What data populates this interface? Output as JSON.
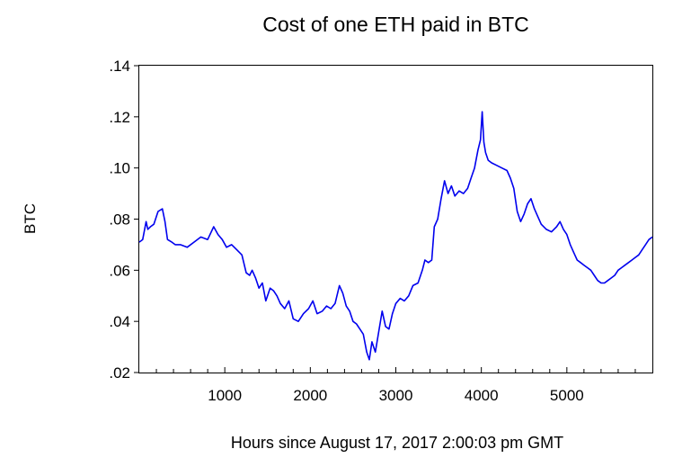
{
  "chart_data": {
    "type": "line",
    "title": "Cost of one ETH paid in BTC",
    "xlabel": "Hours since August 17, 2017 2:00:03 pm GMT",
    "ylabel": "BTC",
    "xlim": [
      0,
      6000
    ],
    "ylim": [
      0.02,
      0.14
    ],
    "x_ticks": [
      1000,
      2000,
      3000,
      4000,
      5000
    ],
    "x_tick_labels": [
      "1000",
      "2000",
      "3000",
      "4000",
      "5000"
    ],
    "y_ticks": [
      0.02,
      0.04,
      0.06,
      0.08,
      0.1,
      0.12,
      0.14
    ],
    "y_tick_labels": [
      ".02",
      ".04",
      ".06",
      ".08",
      ".10",
      ".12",
      ".14"
    ],
    "grid": false,
    "legend": "none",
    "series": [
      {
        "color": "#0000ee",
        "x": [
          0,
          40,
          80,
          100,
          130,
          170,
          220,
          270,
          300,
          330,
          380,
          420,
          480,
          560,
          640,
          720,
          800,
          870,
          920,
          970,
          1020,
          1080,
          1140,
          1200,
          1250,
          1290,
          1320,
          1360,
          1400,
          1440,
          1480,
          1530,
          1570,
          1610,
          1650,
          1700,
          1750,
          1800,
          1860,
          1920,
          1980,
          2030,
          2080,
          2140,
          2190,
          2240,
          2290,
          2340,
          2380,
          2420,
          2460,
          2500,
          2540,
          2580,
          2620,
          2660,
          2690,
          2720,
          2760,
          2800,
          2840,
          2880,
          2920,
          2960,
          3000,
          3050,
          3100,
          3150,
          3200,
          3260,
          3310,
          3340,
          3380,
          3420,
          3450,
          3490,
          3530,
          3570,
          3610,
          3650,
          3690,
          3740,
          3790,
          3840,
          3880,
          3920,
          3960,
          3990,
          4010,
          4030,
          4050,
          4080,
          4120,
          4180,
          4240,
          4300,
          4340,
          4380,
          4420,
          4460,
          4500,
          4540,
          4580,
          4620,
          4660,
          4700,
          4760,
          4820,
          4880,
          4920,
          4960,
          5000,
          5040,
          5080,
          5120,
          5160,
          5200,
          5240,
          5280,
          5320,
          5360,
          5400,
          5440,
          5480,
          5520,
          5560,
          5600,
          5640,
          5680,
          5720,
          5760,
          5800,
          5840,
          5880,
          5920,
          5960,
          6000
        ],
        "values": [
          0.071,
          0.072,
          0.079,
          0.076,
          0.077,
          0.078,
          0.083,
          0.084,
          0.079,
          0.072,
          0.071,
          0.07,
          0.07,
          0.069,
          0.071,
          0.073,
          0.072,
          0.077,
          0.074,
          0.072,
          0.069,
          0.07,
          0.068,
          0.066,
          0.059,
          0.058,
          0.06,
          0.057,
          0.053,
          0.055,
          0.048,
          0.053,
          0.052,
          0.05,
          0.047,
          0.045,
          0.048,
          0.041,
          0.04,
          0.043,
          0.045,
          0.048,
          0.043,
          0.044,
          0.046,
          0.045,
          0.047,
          0.054,
          0.051,
          0.046,
          0.044,
          0.04,
          0.039,
          0.037,
          0.035,
          0.028,
          0.025,
          0.032,
          0.028,
          0.036,
          0.044,
          0.038,
          0.037,
          0.043,
          0.047,
          0.049,
          0.048,
          0.05,
          0.054,
          0.055,
          0.06,
          0.064,
          0.063,
          0.064,
          0.077,
          0.08,
          0.088,
          0.095,
          0.09,
          0.093,
          0.089,
          0.091,
          0.09,
          0.092,
          0.096,
          0.1,
          0.107,
          0.111,
          0.122,
          0.11,
          0.106,
          0.103,
          0.102,
          0.101,
          0.1,
          0.099,
          0.096,
          0.092,
          0.083,
          0.079,
          0.082,
          0.086,
          0.088,
          0.084,
          0.081,
          0.078,
          0.076,
          0.075,
          0.077,
          0.079,
          0.076,
          0.074,
          0.07,
          0.067,
          0.064,
          0.063,
          0.062,
          0.061,
          0.06,
          0.058,
          0.056,
          0.055,
          0.055,
          0.056,
          0.057,
          0.058,
          0.06,
          0.061,
          0.062,
          0.063,
          0.064,
          0.065,
          0.066,
          0.068,
          0.07,
          0.072,
          0.073
        ]
      }
    ]
  }
}
